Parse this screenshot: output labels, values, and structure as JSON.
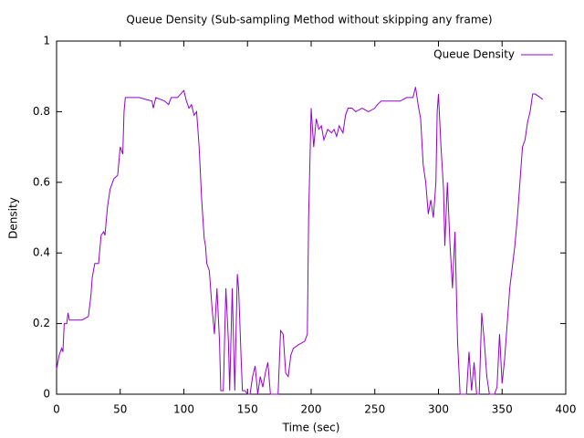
{
  "chart_data": {
    "type": "line",
    "title": "Queue Density (Sub-sampling Method without skipping any frame)",
    "x_label": "Time (sec)",
    "y_label": "Density",
    "xlim": [
      0,
      400
    ],
    "ylim": [
      0,
      1
    ],
    "xticks": [
      0,
      50,
      100,
      150,
      200,
      250,
      300,
      350,
      400
    ],
    "yticks": [
      0,
      0.2,
      0.4,
      0.6,
      0.8,
      1
    ],
    "legend": "top-right",
    "x": [
      0,
      2,
      4,
      5,
      6,
      8,
      9,
      10,
      15,
      20,
      25,
      27,
      28,
      30,
      33,
      35,
      37,
      38,
      40,
      42,
      45,
      48,
      50,
      52,
      53,
      54,
      60,
      65,
      70,
      75,
      76,
      78,
      85,
      88,
      90,
      95,
      100,
      102,
      104,
      106,
      108,
      110,
      112,
      114,
      116,
      117,
      118,
      120,
      122,
      124,
      126,
      128,
      129,
      131,
      133,
      135,
      136,
      138,
      140,
      142,
      143,
      145,
      146,
      148,
      150,
      152,
      154,
      156,
      158,
      160,
      162,
      164,
      166,
      168,
      172,
      174,
      176,
      178,
      180,
      182,
      184,
      186,
      190,
      195,
      197,
      198,
      200,
      202,
      204,
      206,
      208,
      210,
      213,
      216,
      218,
      220,
      222,
      225,
      227,
      229,
      232,
      235,
      240,
      245,
      250,
      252,
      255,
      260,
      265,
      270,
      275,
      280,
      282,
      284,
      286,
      288,
      290,
      292,
      294,
      296,
      298,
      299,
      300,
      302,
      304,
      305,
      307,
      309,
      311,
      313,
      315,
      317,
      320,
      322,
      324,
      326,
      328,
      330,
      332,
      334,
      336,
      338,
      340,
      342,
      344,
      346,
      348,
      350,
      352,
      354,
      356,
      358,
      360,
      362,
      364,
      366,
      368,
      370,
      372,
      374,
      376,
      380,
      382
    ],
    "series": [
      {
        "name": "Queue Density",
        "color": "#9400d3",
        "values": [
          0.07,
          0.11,
          0.13,
          0.12,
          0.2,
          0.2,
          0.23,
          0.21,
          0.21,
          0.21,
          0.22,
          0.28,
          0.33,
          0.37,
          0.37,
          0.45,
          0.46,
          0.45,
          0.53,
          0.58,
          0.61,
          0.62,
          0.7,
          0.68,
          0.8,
          0.84,
          0.84,
          0.84,
          0.835,
          0.83,
          0.81,
          0.84,
          0.83,
          0.82,
          0.84,
          0.84,
          0.86,
          0.83,
          0.81,
          0.82,
          0.79,
          0.8,
          0.7,
          0.55,
          0.44,
          0.42,
          0.37,
          0.35,
          0.25,
          0.17,
          0.3,
          0.15,
          0.01,
          0.01,
          0.3,
          0.15,
          0.01,
          0.3,
          0.01,
          0.34,
          0.3,
          0.1,
          0.01,
          0.01,
          0,
          0,
          0.05,
          0.08,
          0,
          0.05,
          0.02,
          0.06,
          0.09,
          0,
          0,
          0,
          0.18,
          0.17,
          0.06,
          0.05,
          0.11,
          0.13,
          0.14,
          0.15,
          0.17,
          0.5,
          0.81,
          0.7,
          0.78,
          0.75,
          0.76,
          0.72,
          0.75,
          0.74,
          0.75,
          0.73,
          0.76,
          0.74,
          0.79,
          0.81,
          0.81,
          0.8,
          0.81,
          0.8,
          0.81,
          0.82,
          0.83,
          0.83,
          0.83,
          0.83,
          0.84,
          0.84,
          0.87,
          0.82,
          0.78,
          0.65,
          0.6,
          0.51,
          0.55,
          0.5,
          0.6,
          0.8,
          0.85,
          0.7,
          0.58,
          0.42,
          0.6,
          0.43,
          0.3,
          0.46,
          0.15,
          0,
          0,
          0,
          0.12,
          0.01,
          0.09,
          0,
          0,
          0.23,
          0.15,
          0.05,
          0,
          0,
          0,
          0.02,
          0.17,
          0.03,
          0.1,
          0.2,
          0.3,
          0.36,
          0.42,
          0.5,
          0.6,
          0.7,
          0.72,
          0.77,
          0.8,
          0.85,
          0.85,
          0.84,
          0.835
        ]
      }
    ]
  }
}
